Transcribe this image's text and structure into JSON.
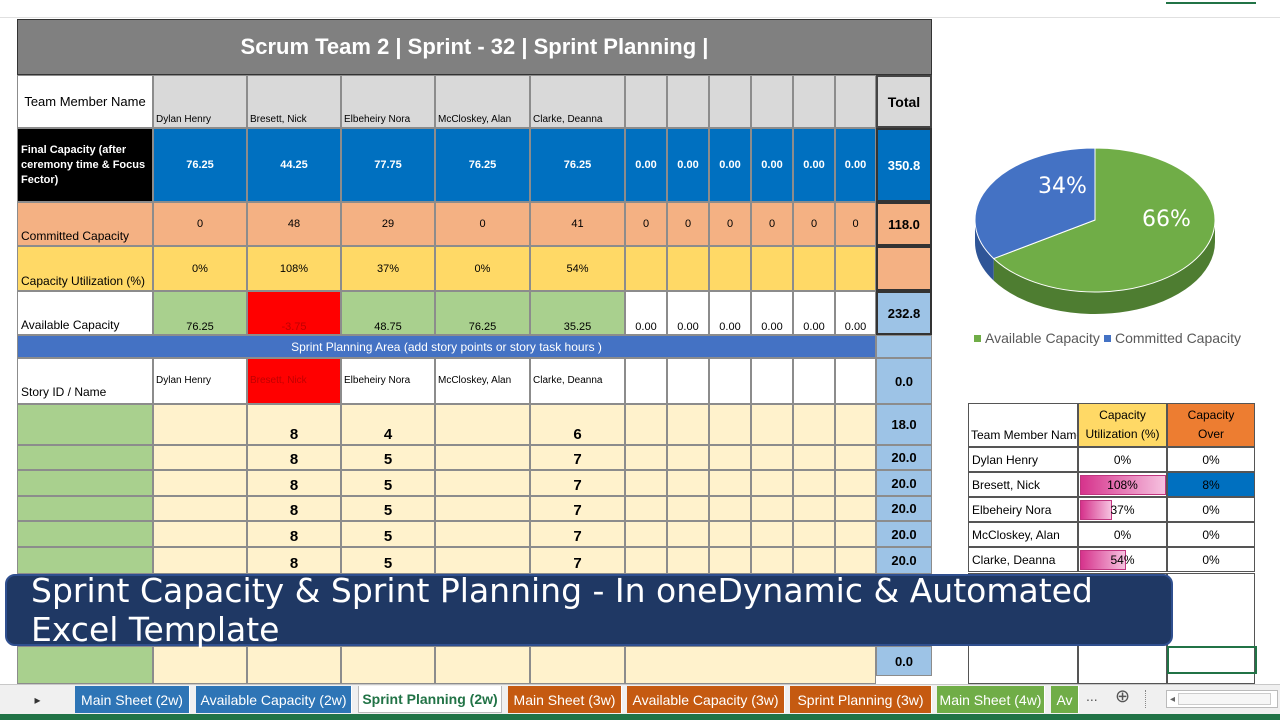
{
  "sheet": {
    "title": "Scrum Team 2 | Sprint - 32 | Sprint Planning |",
    "team_member_header": "Team Member Name",
    "total_header": "Total",
    "members": [
      "Dylan Henry",
      "Bresett, Nick",
      "Elbeheiry Nora",
      "McCloskey, Alan",
      "Clarke, Deanna"
    ],
    "final_capacity": {
      "label": "Final Capacity (after ceremony time & Focus Fector)",
      "values": [
        "76.25",
        "44.25",
        "77.75",
        "76.25",
        "76.25",
        "0.00",
        "0.00",
        "0.00",
        "0.00",
        "0.00",
        "0.00"
      ],
      "total": "350.8"
    },
    "committed_capacity": {
      "label": "Committed Capacity",
      "values": [
        "0",
        "48",
        "29",
        "0",
        "41",
        "0",
        "0",
        "0",
        "0",
        "0",
        "0"
      ],
      "total": "118.0"
    },
    "capacity_utilization": {
      "label": "Capacity Utilization (%)",
      "values": [
        "0%",
        "108%",
        "37%",
        "0%",
        "54%"
      ]
    },
    "available_capacity": {
      "label": "Available Capacity",
      "values": [
        "76.25",
        "-3.75",
        "48.75",
        "76.25",
        "35.25",
        "0.00",
        "0.00",
        "0.00",
        "0.00",
        "0.00",
        "0.00"
      ],
      "total": "232.8"
    },
    "planning_band": "Sprint Planning Area (add story points or story task hours )",
    "story_header": "Story ID / Name",
    "story_header_total": "0.0",
    "story_rows": [
      {
        "vals": [
          "",
          "8",
          "4",
          "",
          "6"
        ],
        "total": "18.0"
      },
      {
        "vals": [
          "",
          "8",
          "5",
          "",
          "7"
        ],
        "total": "20.0"
      },
      {
        "vals": [
          "",
          "8",
          "5",
          "",
          "7"
        ],
        "total": "20.0"
      },
      {
        "vals": [
          "",
          "8",
          "5",
          "",
          "7"
        ],
        "total": "20.0"
      },
      {
        "vals": [
          "",
          "8",
          "5",
          "",
          "7"
        ],
        "total": "20.0"
      },
      {
        "vals": [
          "",
          "8",
          "5",
          "",
          "7"
        ],
        "total": "20.0"
      }
    ],
    "bottom_total": "0.0"
  },
  "pie": {
    "available_pct": "66%",
    "committed_pct": "34%",
    "legend_available": "Available Capacity",
    "legend_committed": "Committed Capacity",
    "colors": {
      "available": "#70ad47",
      "committed": "#4472c4"
    }
  },
  "summary": {
    "header_name": "Team Member Name",
    "header_util": "Capacity Utilization (%)",
    "header_over": "Capacity Over",
    "rows": [
      {
        "name": "Dylan Henry",
        "util": "0%",
        "over": "0%"
      },
      {
        "name": "Bresett, Nick",
        "util": "108%",
        "over": "8%"
      },
      {
        "name": "Elbeheiry Nora",
        "util": "37%",
        "over": "0%"
      },
      {
        "name": "McCloskey, Alan",
        "util": "0%",
        "over": "0%"
      },
      {
        "name": "Clarke, Deanna",
        "util": "54%",
        "over": "0%"
      }
    ]
  },
  "banner": "Sprint Capacity & Sprint Planning - In oneDynamic & Automated Excel  Template",
  "tabs": [
    {
      "label": "Main Sheet (2w)",
      "color": "#2e75b6"
    },
    {
      "label": "Available Capacity (2w)",
      "color": "#2e75b6"
    },
    {
      "label": "Sprint Planning (2w)",
      "color": "#ffffff",
      "active": true
    },
    {
      "label": "Main Sheet (3w)",
      "color": "#c55a11"
    },
    {
      "label": "Available Capacity (3w)",
      "color": "#c55a11"
    },
    {
      "label": "Sprint Planning (3w)",
      "color": "#c55a11"
    },
    {
      "label": "Main Sheet (4w)",
      "color": "#70ad47"
    },
    {
      "label": "Av",
      "color": "#70ad47"
    }
  ],
  "tab_nav": {
    "next": "▸",
    "more": "...",
    "add": "⊕"
  }
}
